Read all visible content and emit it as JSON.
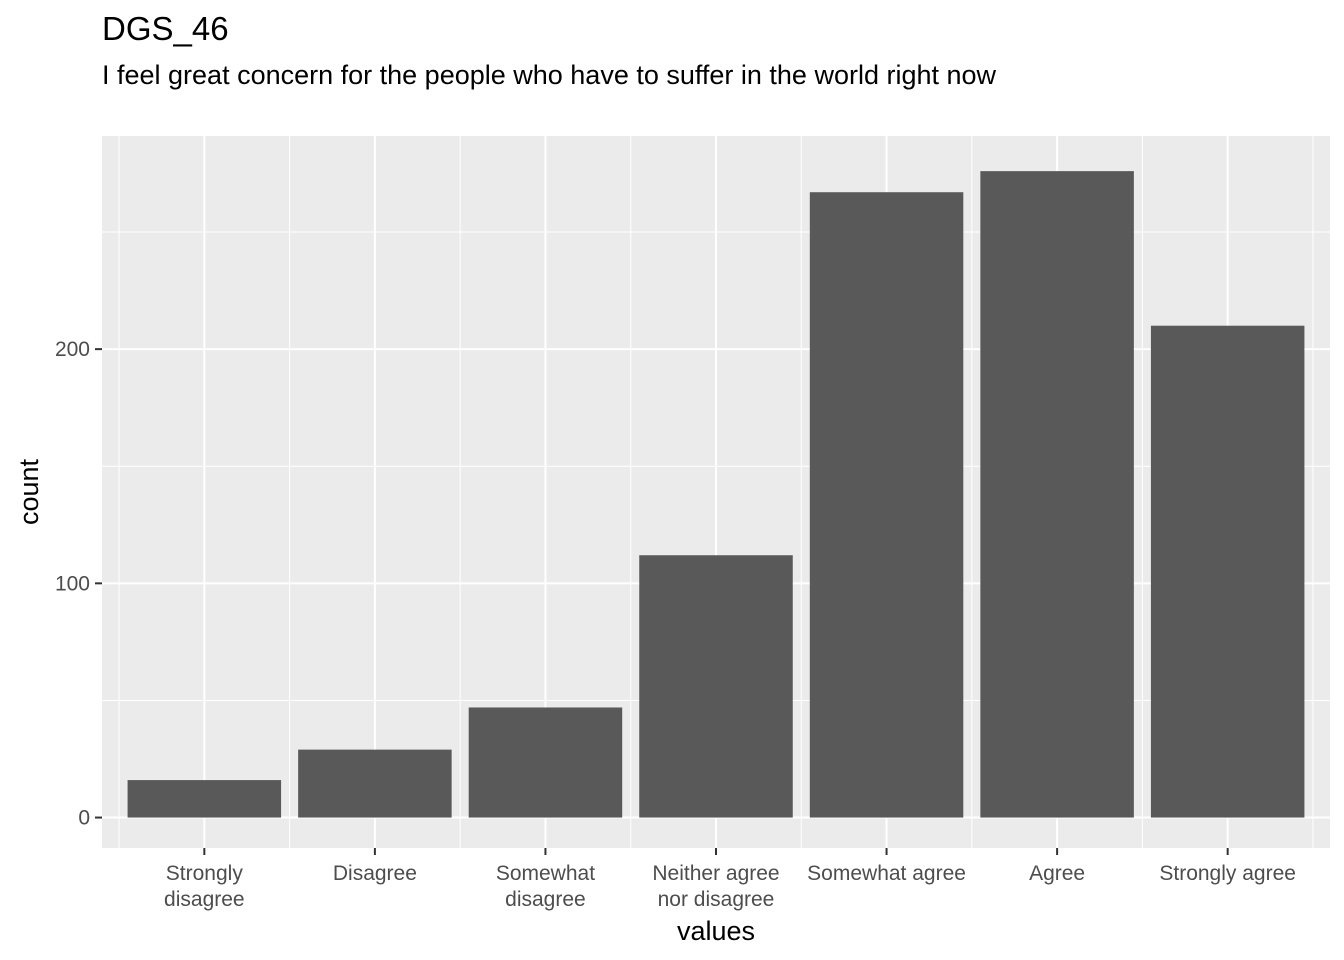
{
  "chart_data": {
    "type": "bar",
    "title": "DGS_46",
    "subtitle": "I feel great concern for the people who have to suffer in the world right now",
    "xlabel": "values",
    "ylabel": "count",
    "categories": [
      [
        "Strongly",
        "disagree"
      ],
      [
        "Disagree"
      ],
      [
        "Somewhat",
        "disagree"
      ],
      [
        "Neither agree",
        "nor disagree"
      ],
      [
        "Somewhat agree"
      ],
      [
        "Agree"
      ],
      [
        "Strongly agree"
      ]
    ],
    "values": [
      16,
      29,
      47,
      112,
      267,
      276,
      210
    ],
    "ylim": [
      -13,
      291
    ],
    "yticks": [
      0,
      100,
      200
    ],
    "grid": true,
    "colors": {
      "bar": "#595959",
      "panel": "#ebebeb",
      "grid": "#ffffff"
    }
  }
}
